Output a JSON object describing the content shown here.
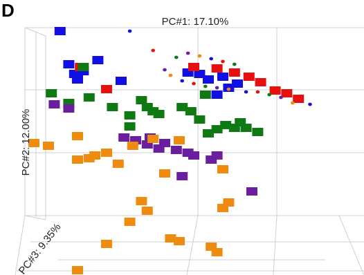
{
  "panel_label": "D",
  "chart_data": {
    "type": "scatter",
    "dimensions": 3,
    "axes": {
      "x_label": "PC#1: 17.10%",
      "y_label": "PC#2: 12.00%",
      "z_label": "PC#3: 9.35%"
    },
    "grid": true,
    "legend": "none",
    "colors": {
      "blue": "#1010e6",
      "red": "#e8100f",
      "green": "#0f7a14",
      "purple": "#6b1fa0",
      "orange": "#ef8c10"
    },
    "series": [
      {
        "color_key": "blue",
        "points": [
          [
            0.04,
            0.88
          ],
          [
            0.07,
            0.64
          ],
          [
            0.09,
            0.57
          ],
          [
            0.1,
            0.53
          ],
          [
            0.12,
            0.59
          ],
          [
            0.17,
            0.67
          ],
          [
            0.25,
            0.52
          ],
          [
            0.48,
            0.58
          ],
          [
            0.52,
            0.57
          ],
          [
            0.55,
            0.53
          ],
          [
            0.6,
            0.55
          ],
          [
            0.62,
            0.47
          ],
          [
            0.65,
            0.5
          ],
          [
            0.58,
            0.42
          ]
        ]
      },
      {
        "color_key": "red",
        "points": [
          [
            0.11,
            0.62
          ],
          [
            0.2,
            0.46
          ],
          [
            0.5,
            0.62
          ],
          [
            0.58,
            0.61
          ],
          [
            0.64,
            0.58
          ],
          [
            0.69,
            0.55
          ],
          [
            0.73,
            0.51
          ],
          [
            0.78,
            0.45
          ],
          [
            0.82,
            0.43
          ],
          [
            0.86,
            0.39
          ]
        ]
      },
      {
        "color_key": "green",
        "points": [
          [
            0.01,
            0.43
          ],
          [
            0.07,
            0.36
          ],
          [
            0.12,
            0.62
          ],
          [
            0.14,
            0.4
          ],
          [
            0.22,
            0.33
          ],
          [
            0.28,
            0.27
          ],
          [
            0.32,
            0.38
          ],
          [
            0.34,
            0.33
          ],
          [
            0.36,
            0.3
          ],
          [
            0.38,
            0.28
          ],
          [
            0.46,
            0.33
          ],
          [
            0.49,
            0.3
          ],
          [
            0.52,
            0.24
          ],
          [
            0.55,
            0.14
          ],
          [
            0.58,
            0.17
          ],
          [
            0.61,
            0.2
          ],
          [
            0.64,
            0.18
          ],
          [
            0.66,
            0.22
          ],
          [
            0.68,
            0.18
          ],
          [
            0.72,
            0.15
          ],
          [
            0.54,
            0.42
          ],
          [
            0.28,
            0.19
          ]
        ]
      },
      {
        "color_key": "purple",
        "points": [
          [
            0.02,
            0.35
          ],
          [
            0.07,
            0.32
          ],
          [
            0.26,
            0.11
          ],
          [
            0.3,
            0.09
          ],
          [
            0.34,
            0.06
          ],
          [
            0.35,
            0.11
          ],
          [
            0.38,
            0.03
          ],
          [
            0.4,
            0.07
          ],
          [
            0.44,
            0.02
          ],
          [
            0.48,
            0.0
          ],
          [
            0.5,
            -0.02
          ],
          [
            0.56,
            -0.05
          ],
          [
            0.58,
            -0.02
          ],
          [
            0.46,
            -0.17
          ],
          [
            0.7,
            -0.28
          ]
        ]
      },
      {
        "color_key": "orange",
        "points": [
          [
            -0.05,
            0.07
          ],
          [
            0.0,
            0.05
          ],
          [
            0.1,
            0.12
          ],
          [
            0.1,
            -0.05
          ],
          [
            0.14,
            -0.04
          ],
          [
            0.16,
            -0.02
          ],
          [
            0.2,
            0.0
          ],
          [
            0.24,
            -0.08
          ],
          [
            0.29,
            0.05
          ],
          [
            0.36,
            0.1
          ],
          [
            0.45,
            0.09
          ],
          [
            0.4,
            -0.15
          ],
          [
            0.32,
            -0.35
          ],
          [
            0.34,
            -0.42
          ],
          [
            0.28,
            -0.5
          ],
          [
            0.42,
            -0.62
          ],
          [
            0.45,
            -0.64
          ],
          [
            0.6,
            -0.4
          ],
          [
            0.62,
            -0.36
          ],
          [
            0.56,
            -0.68
          ],
          [
            0.58,
            -0.72
          ],
          [
            0.6,
            -0.12
          ],
          [
            0.2,
            -0.66
          ],
          [
            0.1,
            -0.85
          ]
        ]
      },
      {
        "color_key": "small_markers",
        "marker": "small",
        "points": [
          [
            0.28,
            0.88
          ],
          [
            0.36,
            0.74
          ],
          [
            0.44,
            0.69
          ],
          [
            0.48,
            0.72
          ],
          [
            0.52,
            0.7
          ],
          [
            0.56,
            0.68
          ],
          [
            0.6,
            0.66
          ],
          [
            0.64,
            0.64
          ],
          [
            0.4,
            0.6
          ],
          [
            0.42,
            0.56
          ],
          [
            0.46,
            0.52
          ],
          [
            0.5,
            0.5
          ],
          [
            0.54,
            0.48
          ],
          [
            0.58,
            0.47
          ],
          [
            0.62,
            0.46
          ],
          [
            0.68,
            0.44
          ],
          [
            0.72,
            0.44
          ],
          [
            0.76,
            0.42
          ],
          [
            0.8,
            0.4
          ],
          [
            0.84,
            0.36
          ],
          [
            0.9,
            0.35
          ]
        ]
      }
    ]
  }
}
